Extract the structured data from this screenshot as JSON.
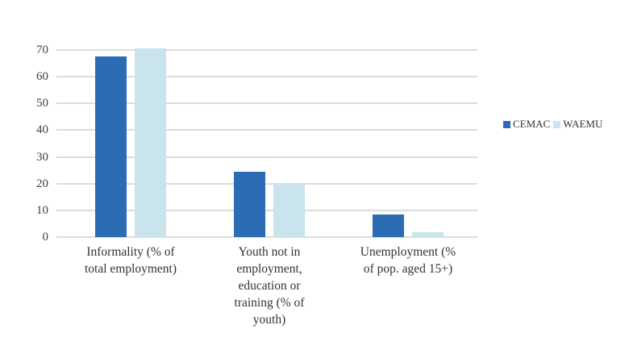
{
  "chart_data": {
    "type": "bar",
    "title": "",
    "xlabel": "",
    "ylabel": "",
    "ylim": [
      0,
      70
    ],
    "yticks": [
      0,
      10,
      20,
      30,
      40,
      50,
      60,
      70
    ],
    "grid": true,
    "legend_position": "right",
    "categories": [
      "Informality (% of total employment)",
      "Youth not in employment, education or training (% of youth)",
      "Unemployment (% of pop. aged 15+)"
    ],
    "series": [
      {
        "name": "CEMAC",
        "color": "#2b6cb5",
        "values": [
          67.5,
          24.4,
          8.3
        ]
      },
      {
        "name": "WAEMU",
        "color": "#c9e4ec",
        "values": [
          70.5,
          20.1,
          1.9
        ]
      }
    ]
  },
  "labels": {
    "yticks": [
      "0",
      "10",
      "20",
      "30",
      "40",
      "50",
      "60",
      "70"
    ],
    "cat_lines": [
      [
        "Informality (% of",
        "total employment)"
      ],
      [
        "Youth not in",
        "employment,",
        "education or",
        "training (% of",
        "youth)"
      ],
      [
        "Unemployment (%",
        "of pop. aged 15+)"
      ]
    ],
    "legend": [
      "CEMAC",
      "WAEMU"
    ]
  }
}
